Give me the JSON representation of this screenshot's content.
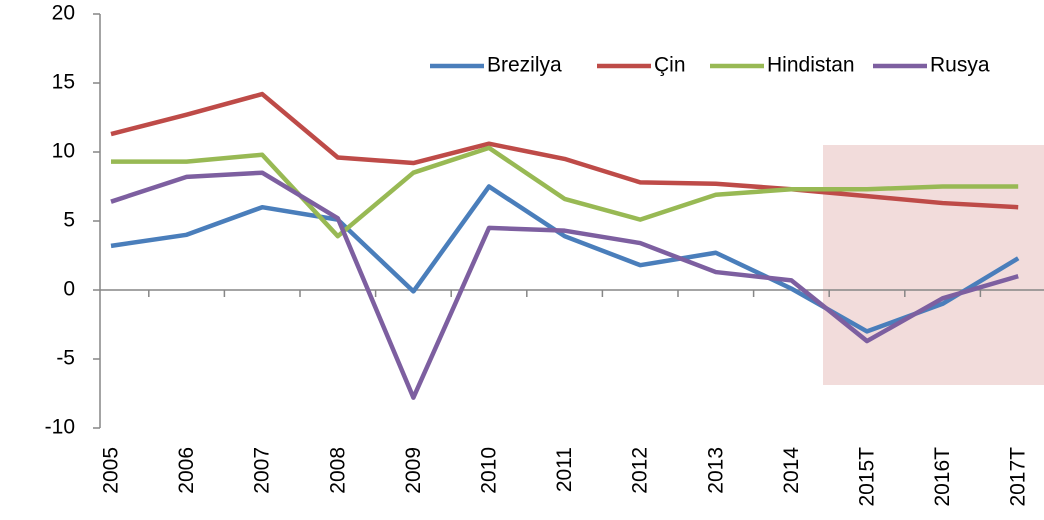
{
  "chart_data": {
    "type": "line",
    "categories": [
      "2005",
      "2006",
      "2007",
      "2008",
      "2009",
      "2010",
      "2011",
      "2012",
      "2013",
      "2014",
      "2015T",
      "2016T",
      "2017T"
    ],
    "series": [
      {
        "name": "Brezilya",
        "color": "#4a7ebb",
        "values": [
          3.2,
          4.0,
          6.0,
          5.1,
          -0.1,
          7.5,
          3.9,
          1.8,
          2.7,
          0.1,
          -3.0,
          -1.0,
          2.3
        ]
      },
      {
        "name": "Çin",
        "color": "#be4b48",
        "values": [
          11.3,
          12.7,
          14.2,
          9.6,
          9.2,
          10.6,
          9.5,
          7.8,
          7.7,
          7.3,
          6.8,
          6.3,
          6.0
        ]
      },
      {
        "name": "Hindistan",
        "color": "#98b954",
        "values": [
          9.3,
          9.3,
          9.8,
          3.9,
          8.5,
          10.3,
          6.6,
          5.1,
          6.9,
          7.3,
          7.3,
          7.5,
          7.5
        ]
      },
      {
        "name": "Rusya",
        "color": "#7d5fa0",
        "values": [
          6.4,
          8.2,
          8.5,
          5.2,
          -7.8,
          4.5,
          4.3,
          3.4,
          1.3,
          0.7,
          -3.7,
          -0.6,
          1.0
        ]
      }
    ],
    "ylim": [
      -10,
      20
    ],
    "yticks": [
      -10,
      -5,
      0,
      5,
      10,
      15,
      20
    ],
    "legend": "top-right"
  }
}
